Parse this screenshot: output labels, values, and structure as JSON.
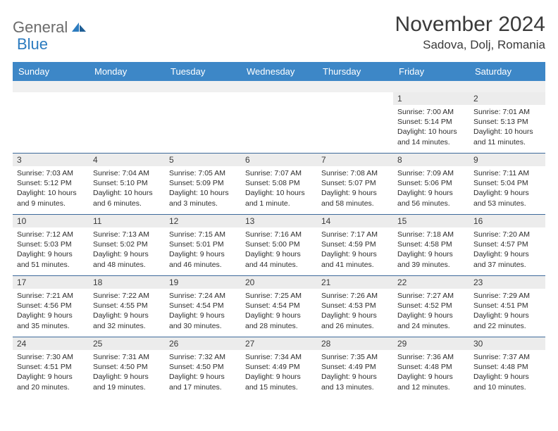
{
  "brand": {
    "word1": "General",
    "word2": "Blue"
  },
  "title": "November 2024",
  "location": "Sadova, Dolj, Romania",
  "colors": {
    "header_bg": "#3d87c7",
    "grey_band": "#f0f0f0",
    "day_num_bg": "#ececec",
    "week_border": "#3d6a9a",
    "text": "#3a3a3a",
    "body_text": "#2d2d2d",
    "logo_grey": "#6b6b6b",
    "logo_blue": "#2b7bbf"
  },
  "day_names": [
    "Sunday",
    "Monday",
    "Tuesday",
    "Wednesday",
    "Thursday",
    "Friday",
    "Saturday"
  ],
  "weeks": [
    [
      null,
      null,
      null,
      null,
      null,
      {
        "n": "1",
        "sr": "7:00 AM",
        "ss": "5:14 PM",
        "d1": "Daylight: 10 hours",
        "d2": "and 14 minutes."
      },
      {
        "n": "2",
        "sr": "7:01 AM",
        "ss": "5:13 PM",
        "d1": "Daylight: 10 hours",
        "d2": "and 11 minutes."
      }
    ],
    [
      {
        "n": "3",
        "sr": "7:03 AM",
        "ss": "5:12 PM",
        "d1": "Daylight: 10 hours",
        "d2": "and 9 minutes."
      },
      {
        "n": "4",
        "sr": "7:04 AM",
        "ss": "5:10 PM",
        "d1": "Daylight: 10 hours",
        "d2": "and 6 minutes."
      },
      {
        "n": "5",
        "sr": "7:05 AM",
        "ss": "5:09 PM",
        "d1": "Daylight: 10 hours",
        "d2": "and 3 minutes."
      },
      {
        "n": "6",
        "sr": "7:07 AM",
        "ss": "5:08 PM",
        "d1": "Daylight: 10 hours",
        "d2": "and 1 minute."
      },
      {
        "n": "7",
        "sr": "7:08 AM",
        "ss": "5:07 PM",
        "d1": "Daylight: 9 hours",
        "d2": "and 58 minutes."
      },
      {
        "n": "8",
        "sr": "7:09 AM",
        "ss": "5:06 PM",
        "d1": "Daylight: 9 hours",
        "d2": "and 56 minutes."
      },
      {
        "n": "9",
        "sr": "7:11 AM",
        "ss": "5:04 PM",
        "d1": "Daylight: 9 hours",
        "d2": "and 53 minutes."
      }
    ],
    [
      {
        "n": "10",
        "sr": "7:12 AM",
        "ss": "5:03 PM",
        "d1": "Daylight: 9 hours",
        "d2": "and 51 minutes."
      },
      {
        "n": "11",
        "sr": "7:13 AM",
        "ss": "5:02 PM",
        "d1": "Daylight: 9 hours",
        "d2": "and 48 minutes."
      },
      {
        "n": "12",
        "sr": "7:15 AM",
        "ss": "5:01 PM",
        "d1": "Daylight: 9 hours",
        "d2": "and 46 minutes."
      },
      {
        "n": "13",
        "sr": "7:16 AM",
        "ss": "5:00 PM",
        "d1": "Daylight: 9 hours",
        "d2": "and 44 minutes."
      },
      {
        "n": "14",
        "sr": "7:17 AM",
        "ss": "4:59 PM",
        "d1": "Daylight: 9 hours",
        "d2": "and 41 minutes."
      },
      {
        "n": "15",
        "sr": "7:18 AM",
        "ss": "4:58 PM",
        "d1": "Daylight: 9 hours",
        "d2": "and 39 minutes."
      },
      {
        "n": "16",
        "sr": "7:20 AM",
        "ss": "4:57 PM",
        "d1": "Daylight: 9 hours",
        "d2": "and 37 minutes."
      }
    ],
    [
      {
        "n": "17",
        "sr": "7:21 AM",
        "ss": "4:56 PM",
        "d1": "Daylight: 9 hours",
        "d2": "and 35 minutes."
      },
      {
        "n": "18",
        "sr": "7:22 AM",
        "ss": "4:55 PM",
        "d1": "Daylight: 9 hours",
        "d2": "and 32 minutes."
      },
      {
        "n": "19",
        "sr": "7:24 AM",
        "ss": "4:54 PM",
        "d1": "Daylight: 9 hours",
        "d2": "and 30 minutes."
      },
      {
        "n": "20",
        "sr": "7:25 AM",
        "ss": "4:54 PM",
        "d1": "Daylight: 9 hours",
        "d2": "and 28 minutes."
      },
      {
        "n": "21",
        "sr": "7:26 AM",
        "ss": "4:53 PM",
        "d1": "Daylight: 9 hours",
        "d2": "and 26 minutes."
      },
      {
        "n": "22",
        "sr": "7:27 AM",
        "ss": "4:52 PM",
        "d1": "Daylight: 9 hours",
        "d2": "and 24 minutes."
      },
      {
        "n": "23",
        "sr": "7:29 AM",
        "ss": "4:51 PM",
        "d1": "Daylight: 9 hours",
        "d2": "and 22 minutes."
      }
    ],
    [
      {
        "n": "24",
        "sr": "7:30 AM",
        "ss": "4:51 PM",
        "d1": "Daylight: 9 hours",
        "d2": "and 20 minutes."
      },
      {
        "n": "25",
        "sr": "7:31 AM",
        "ss": "4:50 PM",
        "d1": "Daylight: 9 hours",
        "d2": "and 19 minutes."
      },
      {
        "n": "26",
        "sr": "7:32 AM",
        "ss": "4:50 PM",
        "d1": "Daylight: 9 hours",
        "d2": "and 17 minutes."
      },
      {
        "n": "27",
        "sr": "7:34 AM",
        "ss": "4:49 PM",
        "d1": "Daylight: 9 hours",
        "d2": "and 15 minutes."
      },
      {
        "n": "28",
        "sr": "7:35 AM",
        "ss": "4:49 PM",
        "d1": "Daylight: 9 hours",
        "d2": "and 13 minutes."
      },
      {
        "n": "29",
        "sr": "7:36 AM",
        "ss": "4:48 PM",
        "d1": "Daylight: 9 hours",
        "d2": "and 12 minutes."
      },
      {
        "n": "30",
        "sr": "7:37 AM",
        "ss": "4:48 PM",
        "d1": "Daylight: 9 hours",
        "d2": "and 10 minutes."
      }
    ]
  ]
}
